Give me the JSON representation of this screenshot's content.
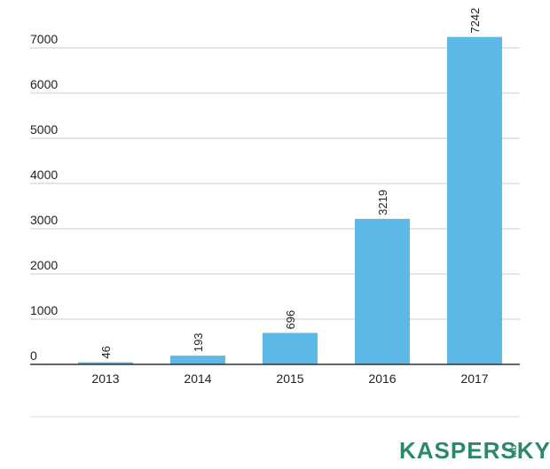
{
  "chart_data": {
    "type": "bar",
    "categories": [
      "2013",
      "2014",
      "2015",
      "2016",
      "2017"
    ],
    "values": [
      46,
      193,
      696,
      3219,
      7242
    ],
    "data_labels": [
      "46",
      "193",
      "696",
      "3219",
      "7242"
    ],
    "title": "",
    "xlabel": "",
    "ylabel": "",
    "ylim": [
      0,
      7000
    ],
    "y_ticks": [
      "0",
      "1000",
      "2000",
      "3000",
      "4000",
      "5000",
      "6000",
      "7000"
    ],
    "y_tick_values": [
      0,
      1000,
      2000,
      3000,
      4000,
      5000,
      6000,
      7000
    ],
    "grid": true,
    "legend": "none",
    "bar_color": "#5db8e6",
    "grid_color": "#cccccc",
    "axis_color": "#333333"
  },
  "logo": {
    "brand": "KASPERSKY",
    "sub": "lab",
    "color": "#2a8a66"
  }
}
